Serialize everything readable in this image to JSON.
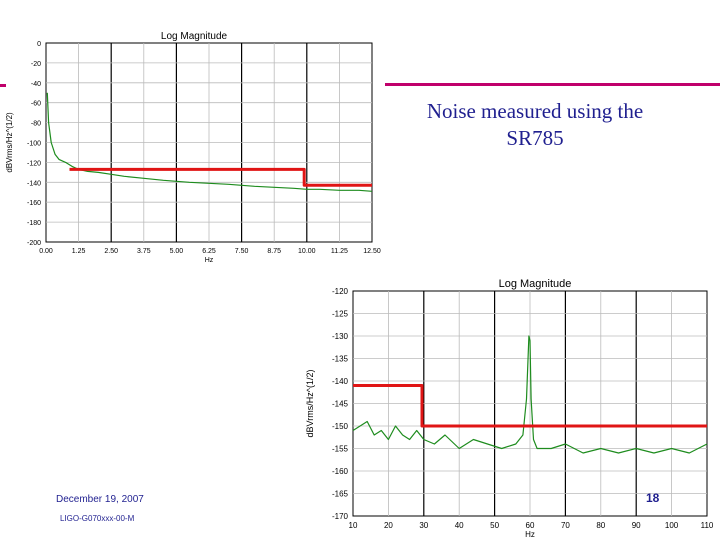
{
  "slide": {
    "caption_line1": "Noise measured using the",
    "caption_line2": "SR785",
    "date": "December 19, 2007",
    "doc_number": "LIGO-G070xxx-00-M",
    "page_number": "18"
  },
  "colors": {
    "trace": "#1e8c1e",
    "overlay": "#e01515",
    "accent": "#c0006b",
    "text": "#1f1f8f"
  },
  "chart_data": [
    {
      "type": "line",
      "title": "Log Magnitude",
      "xlabel": "Hz",
      "ylabel": "dBVrms/Hz^(1/2)",
      "xlim": [
        0,
        12.5
      ],
      "ylim": [
        -200,
        0
      ],
      "x_ticks": [
        "0.00",
        "1.25",
        "2.50",
        "3.75",
        "5.00",
        "6.25",
        "7.50",
        "8.75",
        "10.00",
        "11.25",
        "12.50"
      ],
      "y_ticks": [
        "0",
        "-20",
        "-40",
        "-60",
        "-80",
        "-100",
        "-120",
        "-140",
        "-160",
        "-180",
        "-200"
      ],
      "series": [
        {
          "kind": "measured",
          "x": [
            0.05,
            0.1,
            0.2,
            0.35,
            0.5,
            0.75,
            1.0,
            1.25,
            1.6,
            2.0,
            2.5,
            3.0,
            3.75,
            4.5,
            5.0,
            5.5,
            6.25,
            7.0,
            7.5,
            8.0,
            8.75,
            9.5,
            10.0,
            10.5,
            11.25,
            12.0,
            12.5
          ],
          "y": [
            -50,
            -80,
            -100,
            -112,
            -117,
            -120,
            -124,
            -127,
            -129,
            -130,
            -132,
            -134,
            -136,
            -138,
            -139,
            -140,
            -141,
            -142,
            -143,
            -144,
            -145,
            -146,
            -147,
            -147,
            -148,
            -148,
            -149
          ]
        },
        {
          "kind": "requirement",
          "x": [
            0.9,
            9.9,
            9.9,
            12.5
          ],
          "y": [
            -127,
            -127,
            -143,
            -143
          ]
        }
      ]
    },
    {
      "type": "line",
      "title": "Log Magnitude",
      "xlabel": "Hz",
      "ylabel": "dBVrms/Hz^(1/2)",
      "xlim": [
        10,
        110
      ],
      "ylim": [
        -170,
        -120
      ],
      "x_ticks": [
        "10",
        "20",
        "30",
        "40",
        "50",
        "60",
        "70",
        "80",
        "90",
        "100",
        "110"
      ],
      "y_ticks": [
        "-120",
        "-125",
        "-130",
        "-135",
        "-140",
        "-145",
        "-150",
        "-155",
        "-160",
        "-165",
        "-170"
      ],
      "series": [
        {
          "kind": "measured",
          "x": [
            10,
            12,
            14,
            16,
            18,
            20,
            22,
            24,
            26,
            28,
            30,
            33,
            36,
            40,
            44,
            48,
            52,
            56,
            58,
            59,
            59.7,
            60,
            60.3,
            61,
            62,
            66,
            70,
            75,
            80,
            85,
            90,
            95,
            100,
            105,
            110
          ],
          "y": [
            -151,
            -150,
            -149,
            -152,
            -151,
            -153,
            -150,
            -152,
            -153,
            -151,
            -153,
            -154,
            -152,
            -155,
            -153,
            -154,
            -155,
            -154,
            -152,
            -144,
            -130,
            -131,
            -144,
            -153,
            -155,
            -155,
            -154,
            -156,
            -155,
            -156,
            -155,
            -156,
            -155,
            -156,
            -154
          ]
        },
        {
          "kind": "requirement",
          "x": [
            10,
            29.5,
            29.5,
            110
          ],
          "y": [
            -141,
            -141,
            -150,
            -150
          ]
        }
      ]
    }
  ]
}
